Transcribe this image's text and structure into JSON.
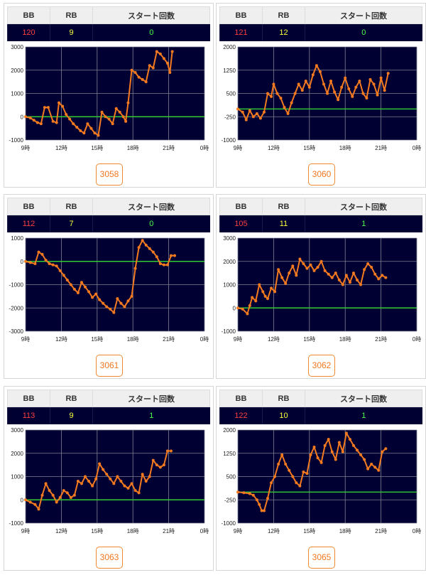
{
  "headers": {
    "bb": "BB",
    "rb": "RB",
    "start": "スタート回数"
  },
  "colors": {
    "plot_bg": "#000033",
    "grid": "#7f8191",
    "zero_line": "#33cc33",
    "series": "#f47a20",
    "bb": "#ff3f3f",
    "rb": "#ffff3a",
    "start": "#49ff49",
    "button_border": "#f08a32",
    "button_text": "#f07820"
  },
  "panels": [
    {
      "machine": "3058",
      "bb": "120",
      "rb": "9",
      "start": "0"
    },
    {
      "machine": "3060",
      "bb": "121",
      "rb": "12",
      "start": "0"
    },
    {
      "machine": "3061",
      "bb": "112",
      "rb": "7",
      "start": "0"
    },
    {
      "machine": "3062",
      "bb": "105",
      "rb": "11",
      "start": "1"
    },
    {
      "machine": "3063",
      "bb": "113",
      "rb": "9",
      "start": "1"
    },
    {
      "machine": "3065",
      "bb": "122",
      "rb": "10",
      "start": "1"
    }
  ],
  "chart_data": [
    {
      "type": "line",
      "machine": "3058",
      "x_ticks": [
        "9時",
        "12時",
        "15時",
        "18時",
        "21時",
        "0時"
      ],
      "y_ticks": [
        "3000",
        "2000",
        "1000",
        "0",
        "-1000"
      ],
      "ylim": [
        -1000,
        3000
      ],
      "xlim": [
        9,
        24
      ],
      "grid": true,
      "series": [
        {
          "x": [
            9.0,
            9.4,
            9.7,
            10.0,
            10.3,
            10.6,
            10.9,
            11.3,
            11.6,
            11.8,
            12.1,
            12.4,
            12.7,
            13.0,
            13.3,
            13.6,
            13.9,
            14.2,
            14.5,
            14.8,
            15.1,
            15.4,
            15.7,
            16.0,
            16.3,
            16.6,
            16.9,
            17.2,
            17.4,
            17.6,
            17.9,
            18.2,
            18.5,
            18.8,
            19.1,
            19.4,
            19.7,
            20.0,
            20.3,
            20.6,
            20.9,
            21.1,
            21.3
          ],
          "y": [
            0,
            -50,
            -150,
            -250,
            -300,
            400,
            400,
            -200,
            -250,
            600,
            450,
            100,
            -100,
            -300,
            -450,
            -600,
            -700,
            -300,
            -500,
            -700,
            -800,
            200,
            0,
            -100,
            -300,
            350,
            200,
            0,
            -200,
            600,
            2000,
            1900,
            1700,
            1600,
            1500,
            2200,
            2100,
            2800,
            2700,
            2500,
            2300,
            1900,
            2800
          ]
        }
      ]
    },
    {
      "type": "line",
      "machine": "3060",
      "x_ticks": [
        "9時",
        "12時",
        "15時",
        "18時",
        "21時",
        "0時"
      ],
      "y_ticks": [
        "2000",
        "1250",
        "500",
        "-250",
        "-1000"
      ],
      "ylim": [
        -1000,
        2000
      ],
      "xlim": [
        9,
        24
      ],
      "grid": true,
      "series": [
        {
          "x": [
            9.0,
            9.4,
            9.7,
            10.0,
            10.3,
            10.6,
            10.9,
            11.2,
            11.5,
            11.8,
            12.0,
            12.3,
            12.6,
            12.9,
            13.2,
            13.5,
            13.8,
            14.1,
            14.4,
            14.7,
            15.0,
            15.3,
            15.6,
            15.9,
            16.2,
            16.5,
            16.8,
            17.1,
            17.4,
            17.7,
            18.0,
            18.3,
            18.6,
            18.9,
            19.2,
            19.5,
            19.8,
            20.1,
            20.4,
            20.7,
            21.0,
            21.3,
            21.6
          ],
          "y": [
            0,
            -100,
            -350,
            -50,
            -250,
            -150,
            -300,
            -100,
            500,
            400,
            800,
            500,
            350,
            50,
            -150,
            200,
            500,
            800,
            600,
            900,
            700,
            1100,
            1400,
            1200,
            800,
            500,
            900,
            550,
            300,
            700,
            1000,
            650,
            400,
            700,
            900,
            500,
            350,
            950,
            800,
            450,
            1000,
            600,
            1150
          ]
        }
      ]
    },
    {
      "type": "line",
      "machine": "3061",
      "x_ticks": [
        "9時",
        "12時",
        "15時",
        "18時",
        "21時",
        "0時"
      ],
      "y_ticks": [
        "1000",
        "0",
        "-1000",
        "-2000",
        "-3000"
      ],
      "ylim": [
        -3000,
        1000
      ],
      "xlim": [
        9,
        24
      ],
      "grid": true,
      "series": [
        {
          "x": [
            9.0,
            9.4,
            9.8,
            10.1,
            10.4,
            10.7,
            11.0,
            11.3,
            11.6,
            11.9,
            12.2,
            12.5,
            12.8,
            13.1,
            13.4,
            13.7,
            14.0,
            14.3,
            14.6,
            14.9,
            15.2,
            15.5,
            15.8,
            16.1,
            16.4,
            16.7,
            17.0,
            17.3,
            17.6,
            17.9,
            18.2,
            18.5,
            18.8,
            19.1,
            19.4,
            19.7,
            20.0,
            20.3,
            20.6,
            20.9,
            21.2,
            21.5
          ],
          "y": [
            0,
            -50,
            -100,
            400,
            300,
            50,
            -100,
            -150,
            -200,
            -400,
            -600,
            -800,
            -1000,
            -1200,
            -1350,
            -900,
            -1100,
            -1300,
            -1550,
            -1400,
            -1650,
            -1800,
            -1950,
            -2050,
            -2200,
            -1600,
            -1800,
            -1950,
            -1700,
            -1500,
            -300,
            600,
            900,
            700,
            550,
            400,
            200,
            -100,
            -150,
            -150,
            250,
            250
          ]
        }
      ]
    },
    {
      "type": "line",
      "machine": "3062",
      "x_ticks": [
        "9時",
        "12時",
        "15時",
        "18時",
        "21時",
        "0時"
      ],
      "y_ticks": [
        "3000",
        "2000",
        "1000",
        "0",
        "-1000"
      ],
      "ylim": [
        -1000,
        3000
      ],
      "xlim": [
        9,
        24
      ],
      "grid": true,
      "series": [
        {
          "x": [
            9.0,
            9.4,
            9.8,
            10.0,
            10.2,
            10.5,
            10.8,
            11.1,
            11.3,
            11.5,
            11.8,
            12.1,
            12.4,
            12.7,
            13.0,
            13.3,
            13.6,
            13.9,
            14.2,
            14.5,
            14.8,
            15.1,
            15.4,
            15.7,
            16.0,
            16.3,
            16.6,
            16.9,
            17.2,
            17.5,
            17.8,
            18.1,
            18.4,
            18.7,
            19.0,
            19.3,
            19.6,
            19.9,
            20.2,
            20.5,
            20.8,
            21.1,
            21.4
          ],
          "y": [
            0,
            -50,
            -250,
            100,
            450,
            300,
            1000,
            700,
            500,
            400,
            850,
            700,
            1650,
            1300,
            1050,
            1500,
            1800,
            1400,
            2100,
            1900,
            1700,
            1850,
            1600,
            1750,
            2000,
            1600,
            1450,
            1300,
            1500,
            1200,
            1000,
            1400,
            1100,
            1500,
            1200,
            1000,
            1650,
            1900,
            1750,
            1450,
            1250,
            1400,
            1300
          ]
        }
      ]
    },
    {
      "type": "line",
      "machine": "3063",
      "x_ticks": [
        "9時",
        "12時",
        "15時",
        "18時",
        "21時",
        "0時"
      ],
      "y_ticks": [
        "3000",
        "2000",
        "1000",
        "0",
        "-1000"
      ],
      "ylim": [
        -1000,
        3000
      ],
      "xlim": [
        9,
        24
      ],
      "grid": true,
      "series": [
        {
          "x": [
            9.0,
            9.4,
            9.8,
            10.1,
            10.4,
            10.7,
            11.0,
            11.3,
            11.6,
            11.9,
            12.2,
            12.5,
            12.8,
            13.1,
            13.4,
            13.7,
            14.0,
            14.3,
            14.6,
            14.9,
            15.2,
            15.5,
            15.8,
            16.1,
            16.4,
            16.7,
            17.0,
            17.3,
            17.6,
            17.9,
            18.2,
            18.5,
            18.8,
            19.1,
            19.4,
            19.7,
            20.0,
            20.3,
            20.6,
            20.9,
            21.2
          ],
          "y": [
            0,
            -100,
            -200,
            -400,
            200,
            700,
            400,
            200,
            -100,
            100,
            400,
            300,
            100,
            200,
            800,
            700,
            1000,
            800,
            600,
            900,
            1550,
            1300,
            1100,
            900,
            700,
            1000,
            800,
            600,
            500,
            700,
            400,
            300,
            1100,
            800,
            1000,
            1700,
            1500,
            1400,
            1500,
            2100,
            2100
          ]
        }
      ]
    },
    {
      "type": "line",
      "machine": "3065",
      "x_ticks": [
        "9時",
        "12時",
        "15時",
        "18時",
        "21時",
        "0時"
      ],
      "y_ticks": [
        "2000",
        "1250",
        "500",
        "-250",
        "-1000"
      ],
      "ylim": [
        -1000,
        2000
      ],
      "xlim": [
        9,
        24
      ],
      "grid": true,
      "series": [
        {
          "x": [
            9.0,
            9.5,
            10.0,
            10.3,
            10.6,
            10.8,
            11.0,
            11.2,
            11.5,
            11.8,
            12.1,
            12.4,
            12.7,
            13.0,
            13.3,
            13.6,
            13.9,
            14.2,
            14.5,
            14.8,
            15.1,
            15.4,
            15.7,
            16.0,
            16.3,
            16.6,
            16.9,
            17.2,
            17.5,
            17.8,
            18.1,
            18.4,
            18.7,
            19.0,
            19.3,
            19.6,
            19.9,
            20.2,
            20.5,
            20.8,
            21.1,
            21.4
          ],
          "y": [
            0,
            -20,
            -50,
            -100,
            -250,
            -400,
            -600,
            -600,
            -200,
            300,
            500,
            900,
            1200,
            900,
            700,
            500,
            300,
            200,
            650,
            600,
            1200,
            1450,
            1100,
            950,
            1500,
            1700,
            1300,
            1050,
            1600,
            1300,
            1900,
            1700,
            1500,
            1350,
            1200,
            1050,
            750,
            900,
            800,
            700,
            1300,
            1400
          ]
        }
      ]
    }
  ]
}
